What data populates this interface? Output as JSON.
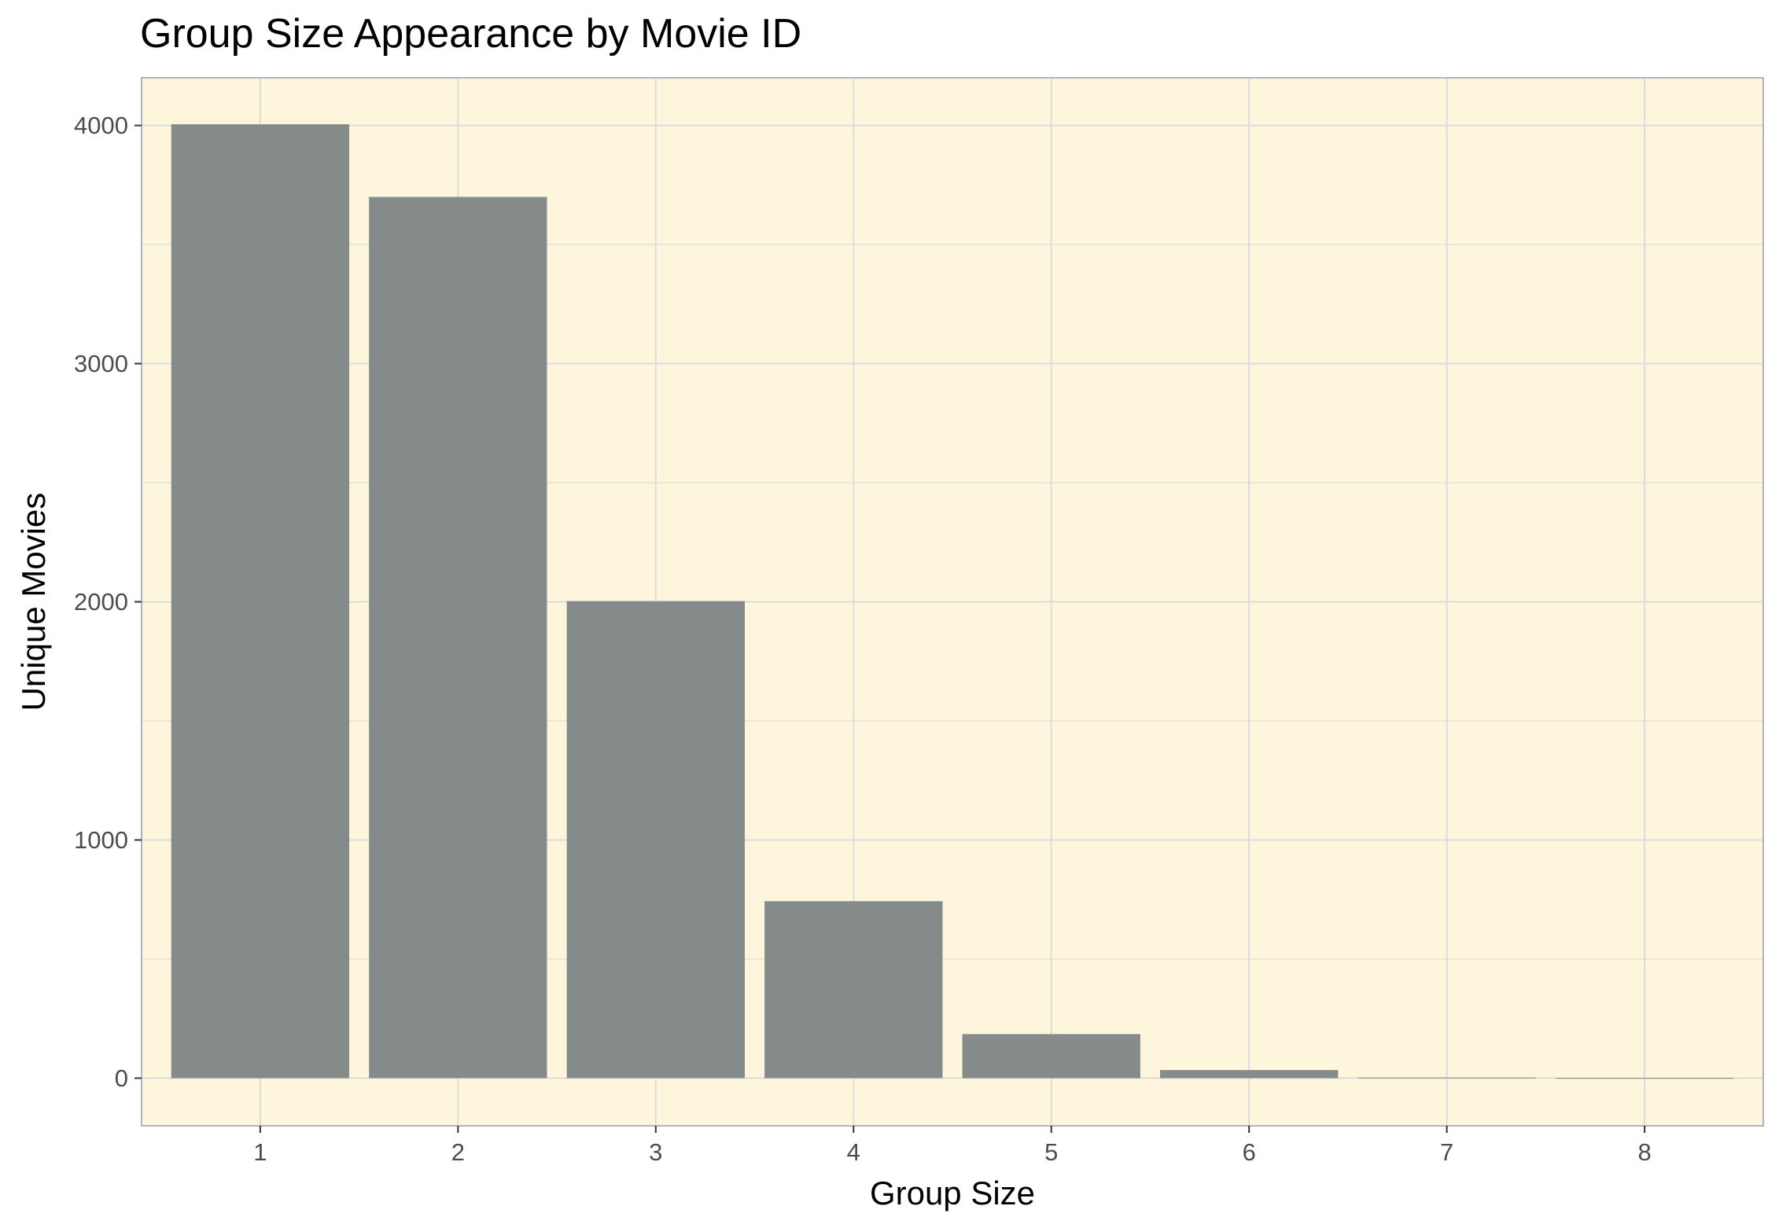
{
  "chart_data": {
    "type": "bar",
    "title": "Group Size Appearance by Movie ID",
    "xlabel": "Group Size",
    "ylabel": "Unique Movies",
    "categories": [
      "1",
      "2",
      "3",
      "4",
      "5",
      "6",
      "7",
      "8"
    ],
    "values": [
      4005,
      3700,
      2003,
      743,
      185,
      34,
      3,
      1
    ],
    "ylim": [
      -200,
      4200
    ],
    "yticks": [
      0,
      1000,
      2000,
      3000,
      4000
    ],
    "grid": true,
    "colors": {
      "bar": "#848b8a",
      "panel_background": "#fef6dc",
      "grid": "#dadcdc",
      "border": "#b3b3b3"
    }
  }
}
